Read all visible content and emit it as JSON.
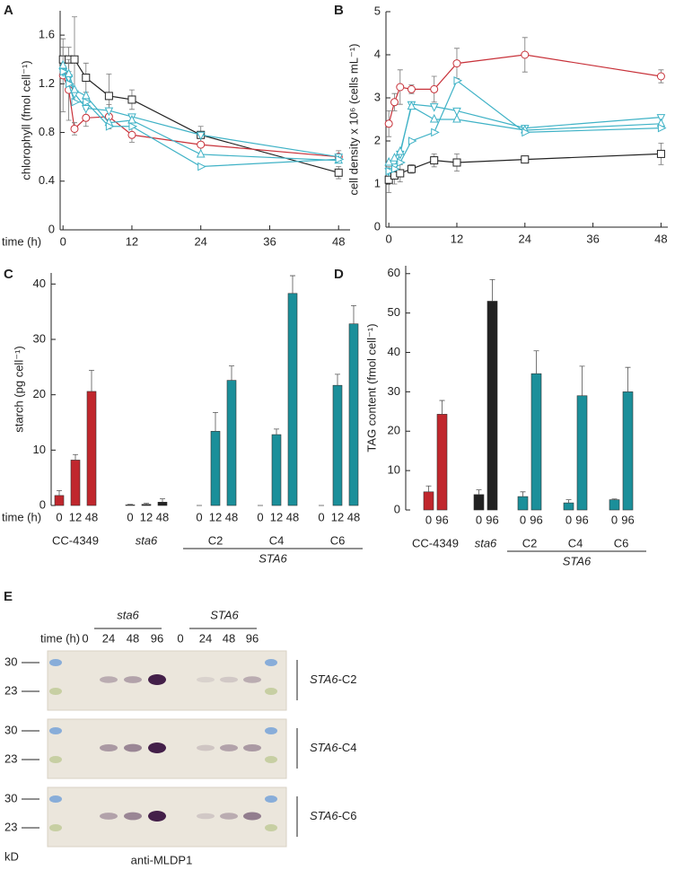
{
  "chart_data": [
    {
      "type": "line",
      "panel": "A",
      "xlabel": "time (h)",
      "ylabel": "chlorophyll (fmol cell⁻¹)",
      "x": [
        0,
        1,
        2,
        4,
        8,
        12,
        24,
        48
      ],
      "xlim": [
        -0.5,
        50
      ],
      "xticks": [
        0,
        12,
        24,
        36,
        48
      ],
      "ylim": [
        0,
        1.8
      ],
      "yticks": [
        0,
        0.4,
        0.8,
        1.2,
        1.6
      ],
      "series": [
        {
          "color": "#222222",
          "marker": "square",
          "values": [
            1.4,
            1.4,
            1.4,
            1.25,
            1.1,
            1.07,
            0.78,
            0.47
          ],
          "errors": [
            0.1,
            0.1,
            0.35,
            0.12,
            0.18,
            0.08,
            0.07,
            0.05
          ]
        },
        {
          "color": "#c8323a",
          "marker": "circle",
          "values": [
            1.27,
            1.15,
            0.83,
            0.92,
            0.93,
            0.78,
            0.7,
            0.6
          ],
          "errors": [
            0.3,
            0.25,
            0.05,
            0.07,
            0.1,
            0.06,
            0.08,
            0.05
          ]
        },
        {
          "color": "#3fb2c6",
          "marker": "triangle-down",
          "values": [
            1.3,
            1.25,
            1.12,
            1.0,
            0.98,
            0.93,
            0.78,
            0.6
          ]
        },
        {
          "color": "#3fb2c6",
          "marker": "triangle-up",
          "values": [
            1.35,
            1.28,
            1.15,
            1.1,
            0.88,
            0.9,
            0.62,
            0.57
          ]
        },
        {
          "color": "#3fb2c6",
          "marker": "triangle-right",
          "values": [
            1.3,
            1.2,
            1.05,
            1.05,
            0.85,
            0.85,
            0.52,
            0.58
          ]
        }
      ]
    },
    {
      "type": "line",
      "panel": "B",
      "ylabel": "cell density x 10⁶ (cells mL⁻¹)",
      "x": [
        0,
        1,
        2,
        4,
        8,
        12,
        24,
        48
      ],
      "xlim": [
        -0.5,
        49.2
      ],
      "xticks": [
        0,
        12,
        24,
        36,
        48
      ],
      "ylim": [
        0,
        5
      ],
      "yticks": [
        0,
        1,
        2,
        3,
        4,
        5
      ],
      "series": [
        {
          "color": "#c8323a",
          "marker": "circle",
          "values": [
            2.4,
            2.9,
            3.25,
            3.2,
            3.2,
            3.8,
            4.0,
            3.5
          ],
          "errors": [
            0.3,
            0.2,
            0.4,
            0.1,
            0.3,
            0.35,
            0.4,
            0.15
          ]
        },
        {
          "color": "#222222",
          "marker": "square",
          "values": [
            1.1,
            1.2,
            1.25,
            1.35,
            1.55,
            1.5,
            1.57,
            1.7
          ],
          "errors": [
            0.3,
            0.2,
            0.2,
            0.1,
            0.15,
            0.2,
            0.07,
            0.25
          ]
        },
        {
          "color": "#3fb2c6",
          "marker": "triangle-down",
          "values": [
            1.3,
            1.4,
            1.7,
            2.85,
            2.8,
            2.7,
            2.3,
            2.55
          ]
        },
        {
          "color": "#3fb2c6",
          "marker": "triangle-up",
          "values": [
            1.5,
            1.6,
            1.75,
            2.8,
            2.5,
            2.5,
            2.25,
            2.4
          ]
        },
        {
          "color": "#3fb2c6",
          "marker": "triangle-right",
          "values": [
            1.3,
            1.35,
            1.5,
            2.0,
            2.2,
            3.4,
            2.2,
            2.3
          ]
        }
      ]
    },
    {
      "type": "bar",
      "panel": "C",
      "xlabel": "time (h)",
      "ylabel": "starch (pg cell⁻¹)",
      "ylim": [
        0,
        42
      ],
      "yticks": [
        0,
        10,
        20,
        30,
        40
      ],
      "groups": [
        {
          "label": "CC-4349",
          "color": "#c0272d",
          "categories": [
            "0",
            "12",
            "48"
          ],
          "values": [
            1.8,
            8.2,
            20.6
          ],
          "errors": [
            0.9,
            1,
            3.8
          ]
        },
        {
          "label": "sta6",
          "italic": true,
          "color": "#222222",
          "categories": [
            "0",
            "12",
            "48"
          ],
          "values": [
            0.1,
            0.2,
            0.6
          ],
          "errors": [
            0.1,
            0.2,
            0.6
          ]
        },
        {
          "label": "STA6",
          "italic": true,
          "subgroups": [
            {
              "label": "C2",
              "color": "#1b8f9a",
              "categories": [
                "0",
                "12",
                "48"
              ],
              "values": [
                0,
                13.4,
                22.6
              ],
              "errors": [
                0,
                3.4,
                2.6
              ]
            },
            {
              "label": "C4",
              "color": "#1b8f9a",
              "categories": [
                "0",
                "12",
                "48"
              ],
              "values": [
                0,
                12.8,
                38.3
              ],
              "errors": [
                0,
                1,
                3.2
              ]
            },
            {
              "label": "C6",
              "color": "#1b8f9a",
              "categories": [
                "0",
                "12",
                "48"
              ],
              "values": [
                0,
                21.7,
                32.8
              ],
              "errors": [
                0,
                2,
                3.3
              ]
            }
          ]
        }
      ]
    },
    {
      "type": "bar",
      "panel": "D",
      "ylabel": "TAG content (fmol cell⁻¹)",
      "ylim": [
        0,
        62
      ],
      "yticks": [
        0,
        10,
        20,
        30,
        40,
        50,
        60
      ],
      "groups": [
        {
          "label": "CC-4349",
          "color": "#c0272d",
          "categories": [
            "0",
            "96"
          ],
          "values": [
            4.6,
            24.3
          ],
          "errors": [
            1.5,
            3.5
          ]
        },
        {
          "label": "sta6",
          "italic": true,
          "color": "#222222",
          "categories": [
            "0",
            "96"
          ],
          "values": [
            3.9,
            53
          ],
          "errors": [
            1.2,
            5.5
          ]
        },
        {
          "label": "STA6",
          "italic": true,
          "subgroups": [
            {
              "label": "C2",
              "color": "#1b8f9a",
              "categories": [
                "0",
                "96"
              ],
              "values": [
                3.4,
                34.6
              ],
              "errors": [
                1.2,
                5.8
              ]
            },
            {
              "label": "C4",
              "color": "#1b8f9a",
              "categories": [
                "0",
                "96"
              ],
              "values": [
                1.8,
                29
              ],
              "errors": [
                0.8,
                7.5
              ]
            },
            {
              "label": "C6",
              "color": "#1b8f9a",
              "categories": [
                "0",
                "96"
              ],
              "values": [
                2.6,
                30
              ],
              "errors": [
                0.2,
                6.2
              ]
            }
          ]
        }
      ]
    }
  ],
  "blot": {
    "panel": "E",
    "time_label": "time (h)",
    "groups": [
      {
        "label": "sta6",
        "times": [
          "0",
          "24",
          "48",
          "96"
        ]
      },
      {
        "label": "STA6",
        "times": [
          "0",
          "24",
          "48",
          "96"
        ]
      }
    ],
    "markers": [
      "30",
      "23"
    ],
    "unit": "kD",
    "blots": [
      {
        "gene": "STA6",
        "suffix": "-C2"
      },
      {
        "gene": "STA6",
        "suffix": "-C4"
      },
      {
        "gene": "STA6",
        "suffix": "-C6"
      }
    ],
    "antibody": "anti-MLDP1"
  }
}
